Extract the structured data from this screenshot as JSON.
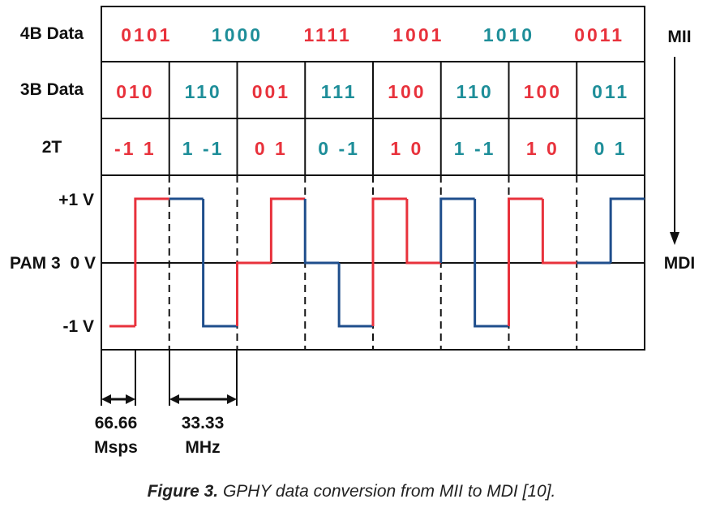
{
  "colors": {
    "red": "#e8323c",
    "teal": "#1e8e99",
    "wave_blue": "#1f4e8c",
    "grid": "#111111"
  },
  "rows": {
    "fourb_label": "4B Data",
    "threeb_label": "3B Data",
    "twot_label": "2T",
    "pam_label": "PAM 3",
    "plus_label": "+1 V",
    "zero_label": "0 V",
    "minus_label": "-1 V"
  },
  "side": {
    "mii": "MII",
    "mdi": "MDI"
  },
  "fourb_cells": [
    {
      "text": "0101",
      "color": "red"
    },
    {
      "text": "1000",
      "color": "teal"
    },
    {
      "text": "1111",
      "color": "red"
    },
    {
      "text": "1001",
      "color": "red"
    },
    {
      "text": "1010",
      "color": "teal"
    },
    {
      "text": "0011",
      "color": "red"
    }
  ],
  "threeb_cells": [
    {
      "text": "010",
      "color": "red"
    },
    {
      "text": "110",
      "color": "teal"
    },
    {
      "text": "001",
      "color": "red"
    },
    {
      "text": "111",
      "color": "teal"
    },
    {
      "text": "100",
      "color": "red"
    },
    {
      "text": "110",
      "color": "teal"
    },
    {
      "text": "100",
      "color": "red"
    },
    {
      "text": "011",
      "color": "teal"
    }
  ],
  "twot_cells": [
    {
      "text": "-1 1",
      "color": "red"
    },
    {
      "text": "1 -1",
      "color": "teal"
    },
    {
      "text": "0 1",
      "color": "red"
    },
    {
      "text": "0 -1",
      "color": "teal"
    },
    {
      "text": "1 0",
      "color": "red"
    },
    {
      "text": "1 -1",
      "color": "teal"
    },
    {
      "text": "1 0",
      "color": "red"
    },
    {
      "text": "0 1",
      "color": "teal"
    }
  ],
  "waveform": {
    "levels": [
      -1,
      1,
      1,
      -1,
      0,
      1,
      0,
      -1,
      1,
      0,
      1,
      -1,
      1,
      0,
      0,
      1
    ],
    "colors": [
      "red",
      "red",
      "blue",
      "blue",
      "red",
      "red",
      "blue",
      "blue",
      "red",
      "red",
      "blue",
      "blue",
      "red",
      "red",
      "blue",
      "blue"
    ]
  },
  "measurements": {
    "symbol_rate_value": "66.66",
    "symbol_rate_unit": "Msps",
    "freq_value": "33.33",
    "freq_unit": "MHz"
  },
  "caption": {
    "label": "Figure 3.",
    "text": " GPHY data conversion from MII to MDI [10]."
  }
}
